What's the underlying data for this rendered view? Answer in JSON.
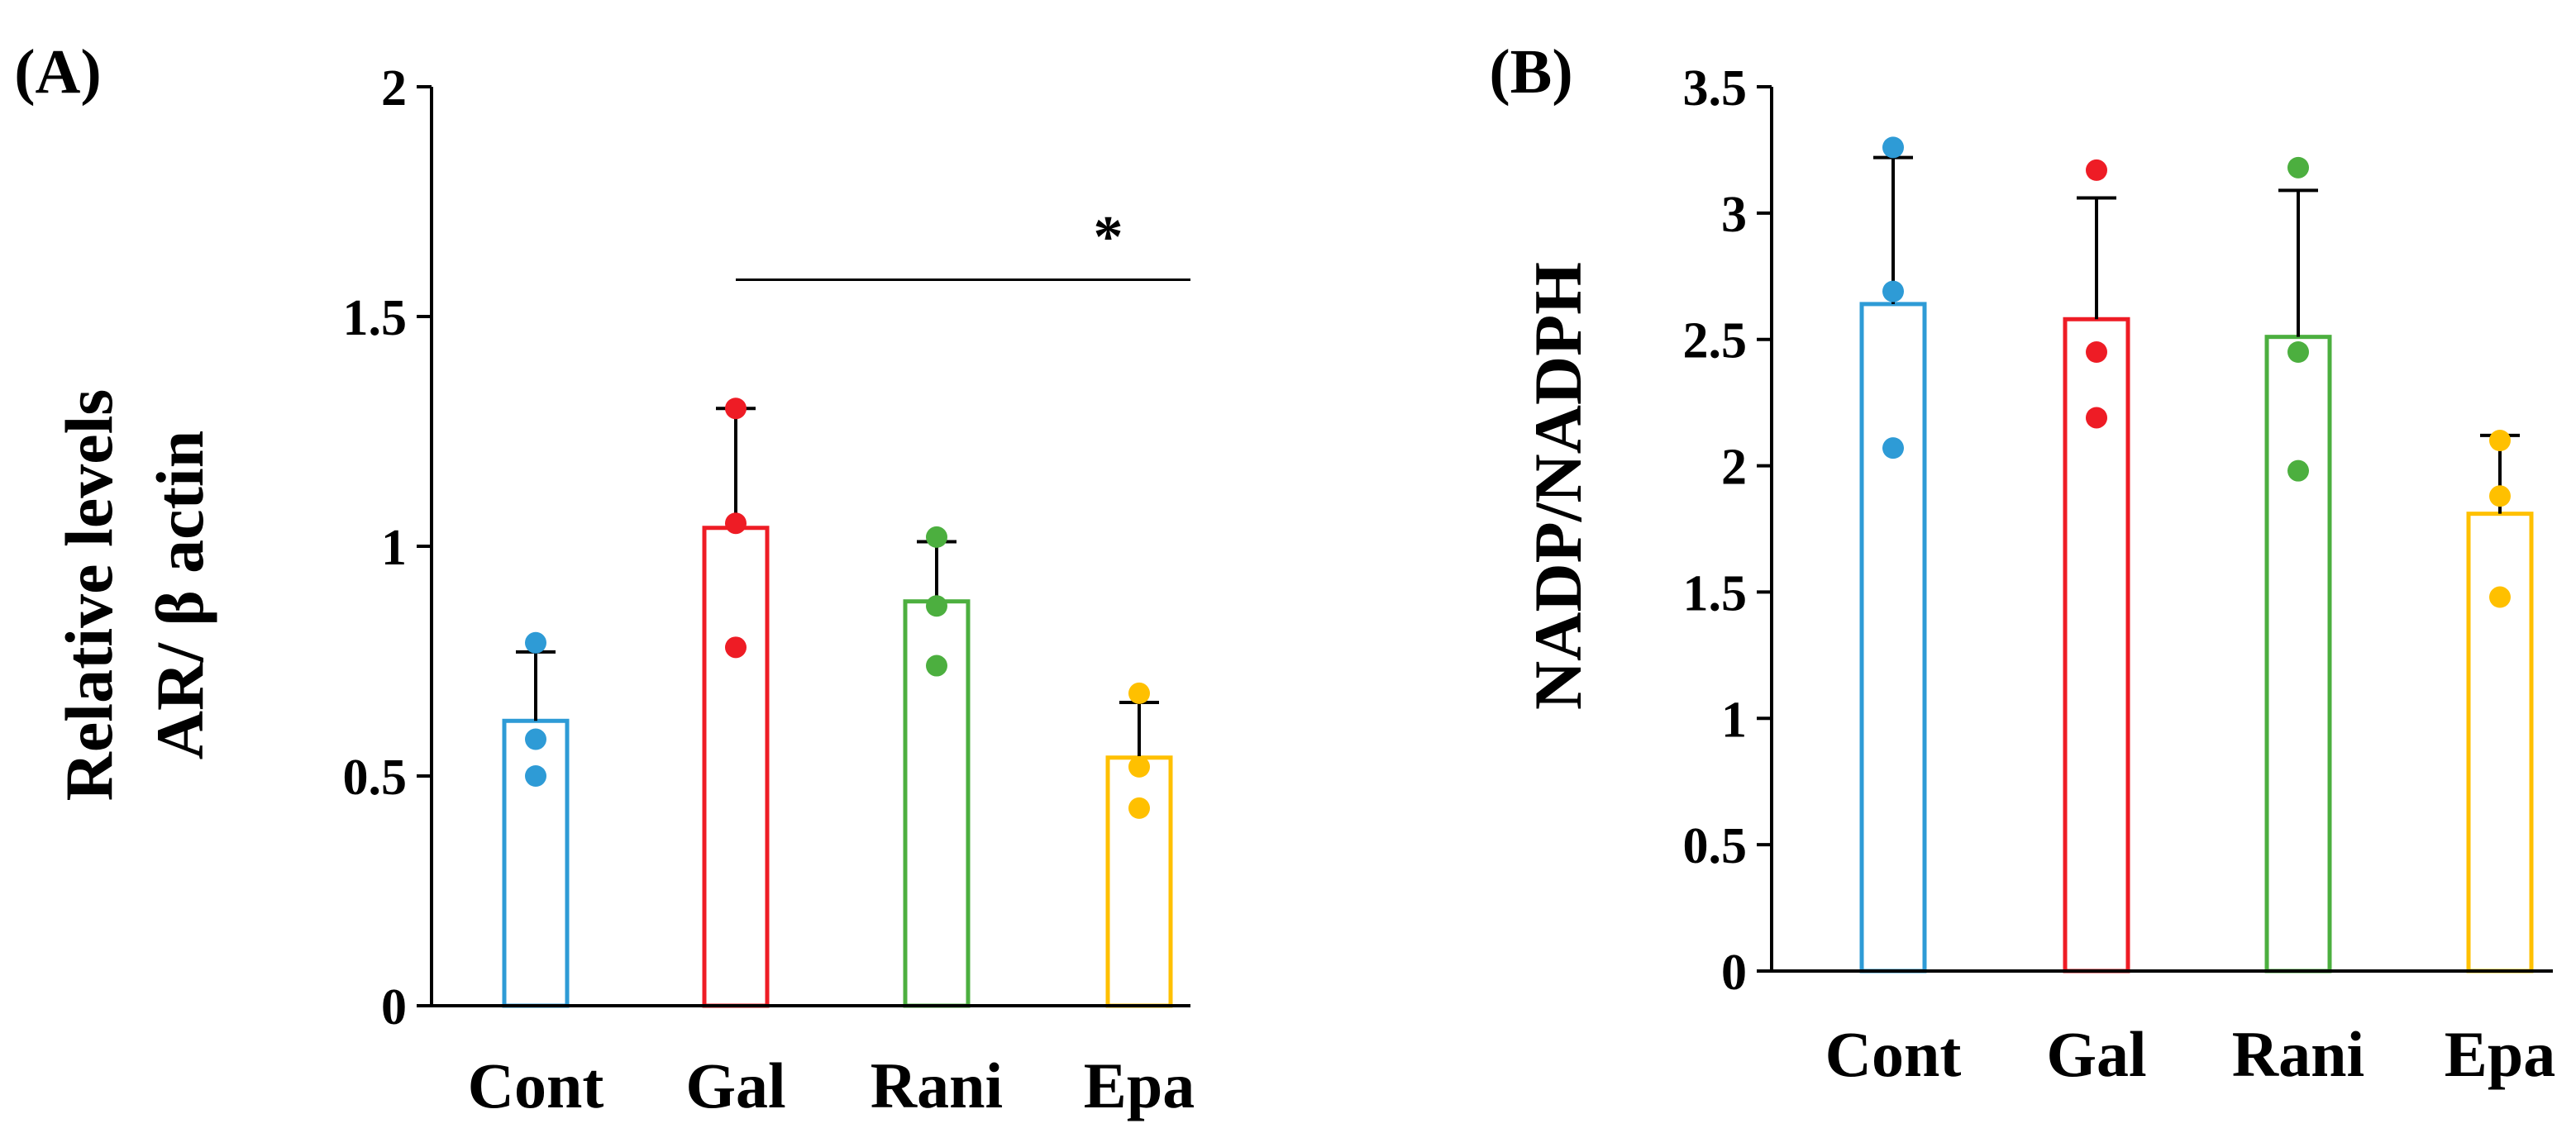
{
  "chart_data": [
    {
      "type": "bar",
      "panel_label": "(A)",
      "ylabel_lines": [
        "Relative levels",
        "AR/ β actin"
      ],
      "xlabel": "",
      "categories": [
        "Cont",
        "Gal",
        "Rani",
        "Epa"
      ],
      "values": [
        0.62,
        1.04,
        0.88,
        0.54
      ],
      "error_upper": [
        0.15,
        0.26,
        0.13,
        0.12
      ],
      "points": [
        [
          0.79,
          0.58,
          0.5
        ],
        [
          1.3,
          1.05,
          0.78
        ],
        [
          1.02,
          0.87,
          0.74
        ],
        [
          0.68,
          0.52,
          0.43
        ]
      ],
      "colors": [
        "#2E9BD6",
        "#EE1C25",
        "#4CAF3F",
        "#FFC000"
      ],
      "ylim": [
        0,
        2
      ],
      "yticks": [
        0,
        0.5,
        1,
        1.5,
        2
      ],
      "ytick_labels": [
        "0",
        "0.5",
        "1",
        "1.5",
        "2"
      ],
      "significance": {
        "from": "Gal",
        "to": "Epa",
        "y": 1.58,
        "label": "*"
      }
    },
    {
      "type": "bar",
      "panel_label": "(B)",
      "ylabel_lines": [
        "NADP/NADPH"
      ],
      "xlabel": "",
      "categories": [
        "Cont",
        "Gal",
        "Rani",
        "Epa"
      ],
      "values": [
        2.64,
        2.58,
        2.51,
        1.81
      ],
      "error_upper": [
        0.58,
        0.48,
        0.58,
        0.31
      ],
      "points": [
        [
          3.26,
          2.69,
          2.07
        ],
        [
          3.17,
          2.45,
          2.19
        ],
        [
          3.18,
          2.45,
          1.98
        ],
        [
          2.1,
          1.88,
          1.48
        ]
      ],
      "colors": [
        "#2E9BD6",
        "#EE1C25",
        "#4CAF3F",
        "#FFC000"
      ],
      "ylim": [
        0,
        3.5
      ],
      "yticks": [
        0,
        0.5,
        1,
        1.5,
        2,
        2.5,
        3,
        3.5
      ],
      "ytick_labels": [
        "0",
        "0.5",
        "1",
        "1.5",
        "2",
        "2.5",
        "3",
        "3.5"
      ]
    }
  ]
}
